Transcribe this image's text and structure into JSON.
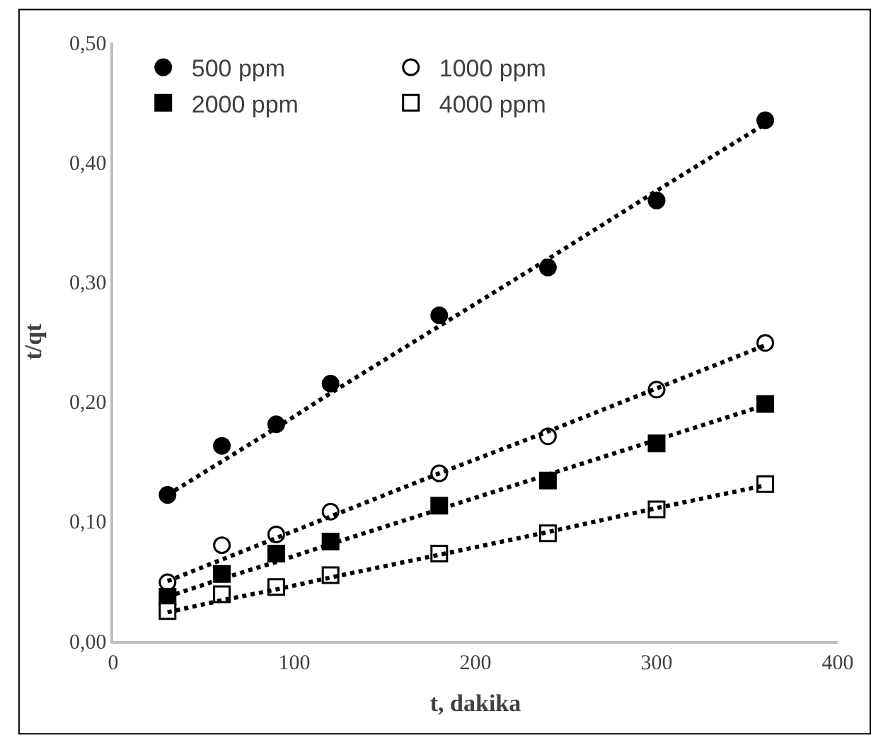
{
  "chart_data": {
    "type": "scatter",
    "xlabel": "t, dakika",
    "ylabel": "t/qt",
    "xlim": [
      0,
      400
    ],
    "xticks": [
      0,
      100,
      200,
      300,
      400
    ],
    "ylim": [
      0,
      0.5
    ],
    "yticks": [
      {
        "value": 0,
        "label": "0,00"
      },
      {
        "value": 0.1,
        "label": "0,10"
      },
      {
        "value": 0.2,
        "label": "0,20"
      },
      {
        "value": 0.3,
        "label": "0,30"
      },
      {
        "value": 0.4,
        "label": "0,40"
      },
      {
        "value": 0.5,
        "label": "0,50"
      }
    ],
    "grid": false,
    "legend": "top left",
    "x": [
      30,
      60,
      90,
      120,
      180,
      240,
      300,
      360
    ],
    "series": [
      {
        "name": "500 ppm",
        "color": "#000000",
        "marker": "circle",
        "values": [
          0.122,
          0.163,
          0.181,
          0.215,
          0.272,
          0.312,
          0.368,
          0.435
        ]
      },
      {
        "name": "1000 ppm",
        "color": "#ffffff",
        "marker": "circle",
        "values": [
          0.049,
          0.08,
          0.089,
          0.108,
          0.14,
          0.171,
          0.21,
          0.249
        ]
      },
      {
        "name": "2000 ppm",
        "color": "#000000",
        "marker": "square",
        "values": [
          0.037,
          0.056,
          0.073,
          0.083,
          0.113,
          0.134,
          0.165,
          0.198
        ]
      },
      {
        "name": "4000 ppm",
        "color": "#ffffff",
        "marker": "square",
        "values": [
          0.025,
          0.039,
          0.045,
          0.055,
          0.073,
          0.09,
          0.11,
          0.131
        ]
      },
      {
        "type": "line",
        "line_style": "dotted",
        "color": "#000000",
        "values": [
          0.122,
          0.15,
          0.178,
          0.207,
          0.263,
          0.319,
          0.376,
          0.432
        ]
      },
      {
        "type": "line",
        "line_style": "dotted",
        "color": "#000000",
        "values": [
          0.05,
          0.068,
          0.086,
          0.104,
          0.14,
          0.175,
          0.211,
          0.247
        ]
      },
      {
        "type": "line",
        "line_style": "dotted",
        "color": "#000000",
        "values": [
          0.037,
          0.052,
          0.066,
          0.081,
          0.11,
          0.139,
          0.168,
          0.197
        ]
      },
      {
        "type": "line",
        "line_style": "dotted",
        "color": "#000000",
        "values": [
          0.024,
          0.034,
          0.043,
          0.053,
          0.072,
          0.091,
          0.111,
          0.13
        ]
      }
    ]
  }
}
